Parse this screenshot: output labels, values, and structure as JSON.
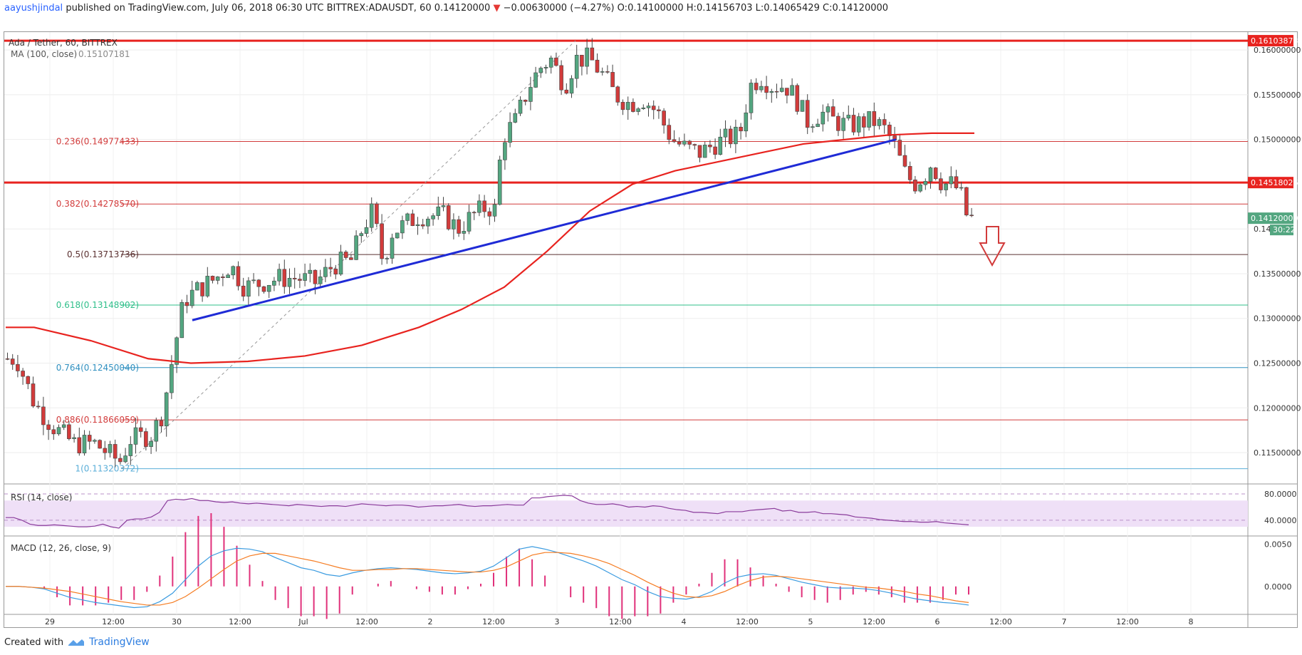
{
  "header": {
    "author": "aayushjindal",
    "published_text": "published on TradingView.com, July 06, 2018 06:30 UTC",
    "symbol": "BITTREX:ADAUSDT, 60",
    "last": "0.14120000",
    "change_arrow": "▼",
    "change": "−0.00630000 (−4.27%)",
    "ohlc": [
      {
        "k": "O:",
        "v": "0.14100000"
      },
      {
        "k": "H:",
        "v": "0.14156703"
      },
      {
        "k": "L:",
        "v": "0.14065429"
      },
      {
        "k": "C:",
        "v": "0.14120000"
      }
    ]
  },
  "footer": {
    "created_with": "Created with",
    "brand": "TradingView"
  },
  "colors": {
    "up": "#53a680",
    "down": "#d23b3b",
    "ma": "#e8231f",
    "trend": "#1f2bd6",
    "rsi": "#8a3b9b",
    "macd": "#3a9be0",
    "signal": "#f57c22",
    "hist": "#e0307a"
  },
  "chart_data": {
    "type": "candlestick",
    "title": "Ada / Tether, 60, BITTREX",
    "indicator_label": "MA (100, close)",
    "indicator_value": "0.15107181",
    "y_range": [
      0.1115,
      0.162
    ],
    "y_ticks": [
      {
        "value": 0.16,
        "label": "0.16000000"
      },
      {
        "value": 0.155,
        "label": "0.15500000"
      },
      {
        "value": 0.15,
        "label": "0.15000000"
      },
      {
        "value": 0.14,
        "label": "0.140"
      },
      {
        "value": 0.135,
        "label": "0.13500000"
      },
      {
        "value": 0.13,
        "label": "0.13000000"
      },
      {
        "value": 0.125,
        "label": "0.12500000"
      },
      {
        "value": 0.12,
        "label": "0.12000000"
      },
      {
        "value": 0.115,
        "label": "0.11500000"
      }
    ],
    "x_ticks": [
      "29",
      "12:00",
      "30",
      "12:00",
      "Jul",
      "12:00",
      "2",
      "12:00",
      "3",
      "12:00",
      "4",
      "12:00",
      "5",
      "12:00",
      "6",
      "12:00",
      "7",
      "12:00",
      "8"
    ],
    "price_tags": [
      {
        "value": 0.16103873,
        "label": "0.16103873",
        "color": "#e8231f"
      },
      {
        "value": 0.14518026,
        "label": "0.14518026",
        "color": "#e8231f"
      },
      {
        "value": 0.1412,
        "label": "0.14120000",
        "color": "#53a680"
      }
    ],
    "countdown": "30:22",
    "horizontal_resistance": [
      0.16103873,
      0.14518026
    ],
    "fib_levels": [
      {
        "label": "0.236(0.14977433)",
        "value": 0.14977433,
        "color": "#d23b3b"
      },
      {
        "label": "0.382(0.14278570)",
        "value": 0.1427857,
        "color": "#d23b3b"
      },
      {
        "label": "0.5(0.13713736)",
        "value": 0.13713736,
        "color": "#5a3030"
      },
      {
        "label": "0.618(0.13148902)",
        "value": 0.13148902,
        "color": "#2fbf8a"
      },
      {
        "label": "0.764(0.12450040)",
        "value": 0.1245004,
        "color": "#2f8fbf"
      },
      {
        "label": "0.886(0.11866059)",
        "value": 0.11866059,
        "color": "#d23b3b"
      },
      {
        "label": "1(0.11320372)",
        "value": 0.11320372,
        "color": "#5aaed8"
      }
    ],
    "rsi": {
      "label": "RSI (14, close)",
      "range": [
        16,
        92
      ],
      "ticks": [
        {
          "value": 80,
          "label": "80.0000"
        },
        {
          "value": 40,
          "label": "40.0000"
        }
      ],
      "band": [
        30,
        70
      ],
      "values": [
        44,
        44,
        40,
        34,
        32,
        32,
        33,
        32,
        31,
        30,
        30,
        31,
        34,
        30,
        28,
        40,
        42,
        42,
        45,
        52,
        70,
        72,
        71,
        73,
        70,
        70,
        68,
        67,
        68,
        66,
        65,
        66,
        65,
        64,
        63,
        62,
        64,
        63,
        62,
        61,
        62,
        62,
        61,
        63,
        65,
        64,
        63,
        62,
        63,
        63,
        62,
        60,
        61,
        62,
        62,
        63,
        64,
        62,
        61,
        62,
        62,
        63,
        64,
        63,
        63,
        74,
        74,
        76,
        77,
        78,
        77,
        70,
        66,
        64,
        64,
        65,
        63,
        60,
        61,
        60,
        62,
        61,
        58,
        56,
        55,
        52,
        52,
        51,
        50,
        53,
        53,
        53,
        55,
        56,
        57,
        58,
        54,
        55,
        52,
        52,
        53,
        50,
        50,
        49,
        48,
        45,
        44,
        43,
        41,
        40,
        39,
        38,
        38,
        37,
        37,
        38,
        36,
        35,
        34,
        33
      ]
    },
    "macd": {
      "label": "MACD (12, 26, close, 9)",
      "range": [
        -0.0033,
        0.0057
      ],
      "ticks": [
        {
          "value": 0.005,
          "label": "0.0050"
        },
        {
          "value": 0.0,
          "label": "0.0000"
        }
      ],
      "macd": [
        0.0,
        0.0,
        -0.0001,
        -0.0003,
        -0.0008,
        -0.0013,
        -0.0016,
        -0.0019,
        -0.0021,
        -0.0023,
        -0.0025,
        -0.0024,
        -0.0018,
        -0.0008,
        0.0008,
        0.0024,
        0.0036,
        0.0042,
        0.0045,
        0.0044,
        0.0041,
        0.0034,
        0.0028,
        0.0022,
        0.0019,
        0.0014,
        0.0012,
        0.0016,
        0.0019,
        0.0021,
        0.0022,
        0.0021,
        0.002,
        0.0018,
        0.0016,
        0.0015,
        0.0016,
        0.0018,
        0.0024,
        0.0034,
        0.0044,
        0.0047,
        0.0044,
        0.004,
        0.0035,
        0.003,
        0.0024,
        0.0016,
        0.0008,
        0.0002,
        -0.0006,
        -0.0012,
        -0.0014,
        -0.0015,
        -0.0012,
        -0.0006,
        0.0004,
        0.0011,
        0.0014,
        0.0015,
        0.0013,
        0.0009,
        0.0005,
        0.0002,
        -0.0001,
        -0.0002,
        -0.0002,
        -0.0003,
        -0.0005,
        -0.0008,
        -0.0012,
        -0.0015,
        -0.0017,
        -0.0019,
        -0.002,
        -0.0022
      ],
      "signal": [
        0.0,
        0.0,
        -0.0001,
        -0.0002,
        -0.0004,
        -0.0006,
        -0.0009,
        -0.0012,
        -0.0015,
        -0.0018,
        -0.002,
        -0.0022,
        -0.0022,
        -0.0019,
        -0.0012,
        -0.0002,
        0.0009,
        0.002,
        0.003,
        0.0036,
        0.0039,
        0.0039,
        0.0036,
        0.0033,
        0.003,
        0.0026,
        0.0022,
        0.0019,
        0.0019,
        0.002,
        0.002,
        0.0021,
        0.0021,
        0.002,
        0.0019,
        0.0018,
        0.0017,
        0.0017,
        0.0019,
        0.0023,
        0.003,
        0.0037,
        0.004,
        0.004,
        0.0039,
        0.0036,
        0.0032,
        0.0027,
        0.002,
        0.0013,
        0.0005,
        -0.0002,
        -0.0008,
        -0.0012,
        -0.0013,
        -0.0011,
        -0.0006,
        0.0001,
        0.0007,
        0.0011,
        0.0012,
        0.0011,
        0.0009,
        0.0007,
        0.0005,
        0.0003,
        0.0001,
        -0.0001,
        -0.0002,
        -0.0004,
        -0.0006,
        -0.0009,
        -0.0011,
        -0.0014,
        -0.0017,
        -0.0019
      ]
    }
  }
}
